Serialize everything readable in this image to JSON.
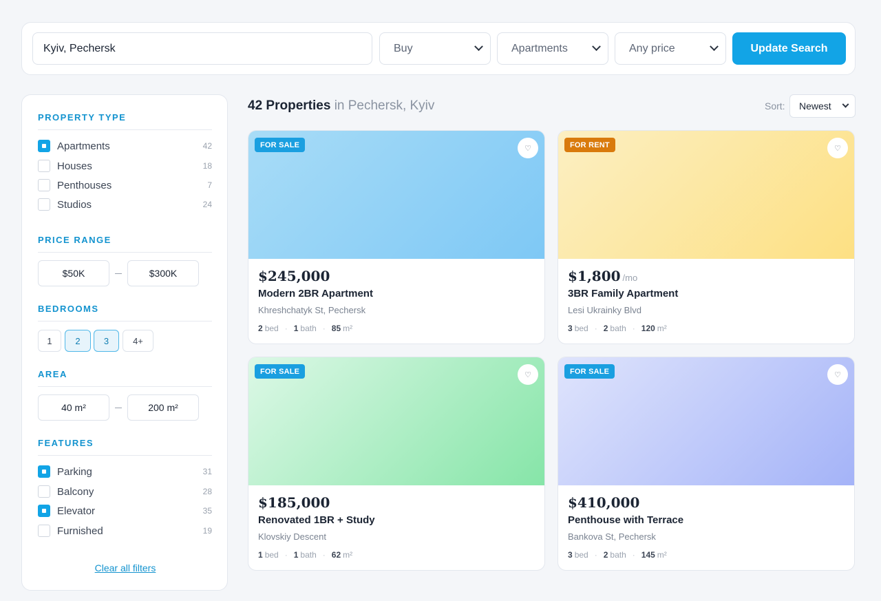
{
  "search": {
    "location_value": "Kyiv, Pechersk",
    "mode": "Buy",
    "type": "Apartments",
    "price": "Any price",
    "update_label": "Update Search"
  },
  "filters": {
    "property_type": {
      "title": "PROPERTY TYPE",
      "items": [
        {
          "label": "Apartments",
          "count": "42",
          "checked": true
        },
        {
          "label": "Houses",
          "count": "18",
          "checked": false
        },
        {
          "label": "Penthouses",
          "count": "7",
          "checked": false
        },
        {
          "label": "Studios",
          "count": "24",
          "checked": false
        }
      ]
    },
    "price_range": {
      "title": "PRICE RANGE",
      "min": "$50K",
      "max": "$300K"
    },
    "bedrooms": {
      "title": "BEDROOMS",
      "options": [
        {
          "label": "1",
          "active": false
        },
        {
          "label": "2",
          "active": true
        },
        {
          "label": "3",
          "active": true
        },
        {
          "label": "4+",
          "active": false
        }
      ]
    },
    "area": {
      "title": "AREA",
      "min": "40 m²",
      "max": "200 m²"
    },
    "features": {
      "title": "FEATURES",
      "items": [
        {
          "label": "Parking",
          "count": "31",
          "checked": true
        },
        {
          "label": "Balcony",
          "count": "28",
          "checked": false
        },
        {
          "label": "Elevator",
          "count": "35",
          "checked": true
        },
        {
          "label": "Furnished",
          "count": "19",
          "checked": false
        }
      ]
    },
    "clear_label": "Clear all filters"
  },
  "results": {
    "count_label": "42 Properties",
    "location_label": "in Pechersk, Kyiv",
    "sort_label": "Sort:",
    "sort_value": "Newest"
  },
  "icons": {
    "favorite": "heart-icon",
    "dropdown": "chevron-down-icon"
  },
  "colors": {
    "accent": "#12a4e6",
    "sale_badge": "#1a9fe0",
    "rent_badge": "#d97a0c"
  },
  "listings": [
    {
      "badge": "FOR SALE",
      "price": "$245,000",
      "per": "",
      "title": "Modern 2BR Apartment",
      "address": "Khreshchatyk St, Pechersk",
      "beds": "2",
      "bed_unit": "bed",
      "baths": "1",
      "bath_unit": "bath",
      "area": "85",
      "area_unit": "m²",
      "img_from": "#a8dcf7",
      "img_to": "#7ec8f5"
    },
    {
      "badge": "FOR RENT",
      "price": "$1,800",
      "per": "/mo",
      "title": "3BR Family Apartment",
      "address": "Lesi Ukrainky Blvd",
      "beds": "3",
      "bed_unit": "bed",
      "baths": "2",
      "bath_unit": "bath",
      "area": "120",
      "area_unit": "m²",
      "img_from": "#fcefc2",
      "img_to": "#fde083"
    },
    {
      "badge": "FOR SALE",
      "price": "$185,000",
      "per": "",
      "title": "Renovated 1BR + Study",
      "address": "Klovskiy Descent",
      "beds": "1",
      "bed_unit": "bed",
      "baths": "1",
      "bath_unit": "bath",
      "area": "62",
      "area_unit": "m²",
      "img_from": "#dcf8e6",
      "img_to": "#86e5a8"
    },
    {
      "badge": "FOR SALE",
      "price": "$410,000",
      "per": "",
      "title": "Penthouse with Terrace",
      "address": "Bankova St, Pechersk",
      "beds": "3",
      "bed_unit": "bed",
      "baths": "2",
      "bath_unit": "bath",
      "area": "145",
      "area_unit": "m²",
      "img_from": "#dfe4fc",
      "img_to": "#a4b3f8"
    }
  ]
}
